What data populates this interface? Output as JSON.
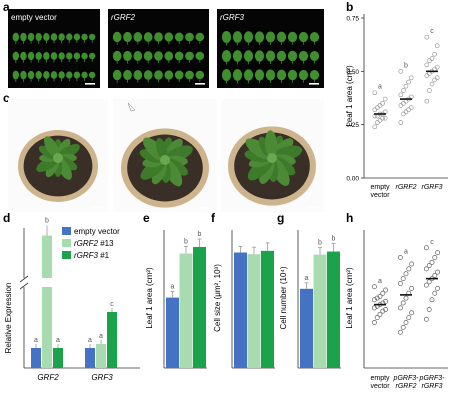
{
  "colors": {
    "empty_vector": "#4472c4",
    "rGRF2": "#a9dbb0",
    "rGRF3": "#1aa34a",
    "leaf_green": "#3f8f2e",
    "photo_bg": "#050505",
    "pot_tan": "#cdb48d",
    "soil": "#3a2f26",
    "point_gray": "#9a9a9a"
  },
  "panels": {
    "a": {
      "label": "a",
      "columns": [
        "empty vector",
        "rGRF2",
        "rGRF3"
      ],
      "rows_per_column": 3,
      "leaves_per_row": [
        11,
        9,
        9
      ]
    },
    "b": {
      "label": "b",
      "chart_data": {
        "type": "scatter",
        "ylabel": "Leaf 1 area (cm²)",
        "ylim": [
          0,
          0.75
        ],
        "yticks": [
          "0.00",
          "0.25",
          "0.50",
          "0.75"
        ],
        "categories": [
          "empty vector",
          "rGRF2",
          "rGRF3"
        ],
        "category_lines": [
          [
            "empty",
            "vector"
          ],
          [
            "rGRF2"
          ],
          [
            "rGRF3"
          ]
        ],
        "means": [
          0.3,
          0.37,
          0.5
        ],
        "letters": [
          "a",
          "b",
          "c"
        ],
        "series": [
          {
            "values": [
              0.24,
              0.26,
              0.27,
              0.28,
              0.28,
              0.29,
              0.29,
              0.3,
              0.3,
              0.31,
              0.32,
              0.33,
              0.34,
              0.35,
              0.37,
              0.4
            ]
          },
          {
            "values": [
              0.26,
              0.3,
              0.31,
              0.32,
              0.33,
              0.34,
              0.35,
              0.36,
              0.37,
              0.38,
              0.39,
              0.41,
              0.43,
              0.45,
              0.47,
              0.5
            ]
          },
          {
            "values": [
              0.36,
              0.41,
              0.44,
              0.46,
              0.47,
              0.48,
              0.49,
              0.5,
              0.51,
              0.52,
              0.53,
              0.55,
              0.56,
              0.58,
              0.62,
              0.66
            ]
          }
        ]
      }
    },
    "c": {
      "label": "c"
    },
    "d": {
      "label": "d",
      "chart_data": {
        "type": "bar",
        "ylabel": "Relative Expression",
        "categories": [
          "GRF2",
          "GRF3"
        ],
        "legend": [
          "empty vector",
          "rGRF2 #13",
          "rGRF3 #1"
        ],
        "legend_parts": [
          [
            "empty vector",
            ""
          ],
          [
            "rGRF2",
            " #13"
          ],
          [
            "rGRF3",
            " #1"
          ]
        ],
        "series": [
          {
            "name": "empty vector",
            "values": [
              1.0,
              1.0
            ]
          },
          {
            "name": "rGRF2 #13",
            "values": [
              25.0,
              1.2
            ]
          },
          {
            "name": "rGRF3 #1",
            "values": [
              1.0,
              2.8
            ]
          }
        ],
        "letters": [
          [
            "a",
            "b",
            "a"
          ],
          [
            "a",
            "a",
            "c"
          ]
        ],
        "axis_break": true
      }
    },
    "e": {
      "label": "e",
      "chart_data": {
        "type": "bar",
        "ylabel": "Leaf 1 area (cm²)",
        "values": [
          0.32,
          0.52,
          0.55
        ],
        "ylim": [
          0,
          0.6
        ],
        "letters": [
          "a",
          "b",
          "b"
        ]
      }
    },
    "f": {
      "label": "f",
      "chart_data": {
        "type": "bar",
        "ylabel": "Cell size (μm², 10³)",
        "values": [
          3.5,
          3.45,
          3.55
        ],
        "ylim": [
          0,
          4
        ],
        "letters": [
          "",
          "",
          ""
        ]
      }
    },
    "g": {
      "label": "g",
      "chart_data": {
        "type": "bar",
        "ylabel": "Cell number (10⁴)",
        "values": [
          5.1,
          7.3,
          7.5
        ],
        "ylim": [
          0,
          8.5
        ],
        "letters": [
          "a",
          "b",
          "b"
        ]
      }
    },
    "h": {
      "label": "h",
      "chart_data": {
        "type": "scatter",
        "ylabel": "Leaf 1 area (cm²)",
        "categories": [
          "empty vector",
          "pGRF3-rGRF2",
          "pGRF3-rGRF3"
        ],
        "category_lines": [
          [
            "empty",
            "vector"
          ],
          [
            "pGRF3-",
            "rGRF2"
          ],
          [
            "pGRF3-",
            "rGRF3"
          ]
        ],
        "letters": [
          "a",
          "a",
          "c"
        ],
        "means": [
          0.39,
          0.45,
          0.55
        ],
        "series": [
          {
            "values": [
              0.28,
              0.31,
              0.33,
              0.35,
              0.36,
              0.37,
              0.38,
              0.39,
              0.4,
              0.41,
              0.42,
              0.43,
              0.44,
              0.46,
              0.48,
              0.5
            ]
          },
          {
            "values": [
              0.22,
              0.25,
              0.28,
              0.31,
              0.34,
              0.37,
              0.4,
              0.43,
              0.46,
              0.49,
              0.52,
              0.55,
              0.58,
              0.61,
              0.64,
              0.68
            ]
          },
          {
            "values": [
              0.3,
              0.36,
              0.42,
              0.46,
              0.49,
              0.51,
              0.53,
              0.55,
              0.57,
              0.59,
              0.61,
              0.63,
              0.65,
              0.68,
              0.71,
              0.74
            ]
          }
        ]
      }
    }
  }
}
